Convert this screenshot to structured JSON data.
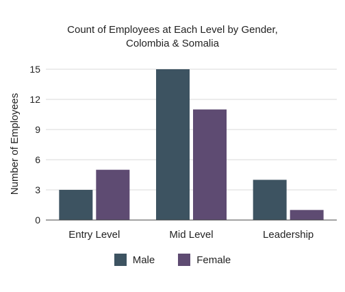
{
  "chart_data": {
    "type": "bar",
    "title": "Count of Employees at Each Level by Gender, Colombia & Somalia",
    "title_lines": [
      "Count of Employees at Each Level by Gender,",
      "Colombia & Somalia"
    ],
    "xlabel": "",
    "ylabel": "Number of Employees",
    "categories": [
      "Entry Level",
      "Mid Level",
      "Leadership"
    ],
    "series": [
      {
        "name": "Male",
        "values": [
          3,
          15,
          4
        ],
        "color": "#3d5361"
      },
      {
        "name": "Female",
        "values": [
          5,
          11,
          1
        ],
        "color": "#5e4b72"
      }
    ],
    "ylim": [
      0,
      15
    ],
    "yticks": [
      0,
      3,
      6,
      9,
      12,
      15
    ],
    "grid": true,
    "legend_position": "bottom"
  }
}
